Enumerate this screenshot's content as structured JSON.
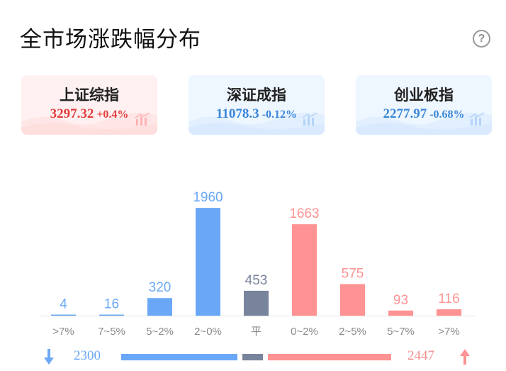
{
  "page": {
    "title": "全市场涨跌幅分布"
  },
  "icons": {
    "help": "help-circle-icon",
    "down": "arrow-down-icon",
    "up": "arrow-up-icon"
  },
  "indices": [
    {
      "name": "上证综指",
      "value": "3297.32",
      "change": "+0.4%",
      "trend": "up"
    },
    {
      "name": "深证成指",
      "value": "11078.3",
      "change": "-0.12%",
      "trend": "down"
    },
    {
      "name": "创业板指",
      "value": "2277.97",
      "change": "-0.68%",
      "trend": "down"
    }
  ],
  "colors": {
    "down": "#6aa8f7",
    "flat": "#78849c",
    "up": "#ff9393",
    "down_text": "#3a86d8",
    "up_text": "#e23c3c"
  },
  "chart_data": {
    "type": "bar",
    "categories": [
      ">7%",
      "7~5%",
      "5~2%",
      "2~0%",
      "平",
      "0~2%",
      "2~5%",
      "5~7%",
      ">7%"
    ],
    "values": [
      4,
      16,
      320,
      1960,
      453,
      1663,
      575,
      93,
      116
    ],
    "groups": [
      "down",
      "down",
      "down",
      "down",
      "flat",
      "up",
      "up",
      "up",
      "up"
    ],
    "ylim": [
      0,
      2000
    ],
    "title": "",
    "xlabel": "",
    "ylabel": ""
  },
  "summary": {
    "down_count": "2300",
    "up_count": "2447"
  }
}
